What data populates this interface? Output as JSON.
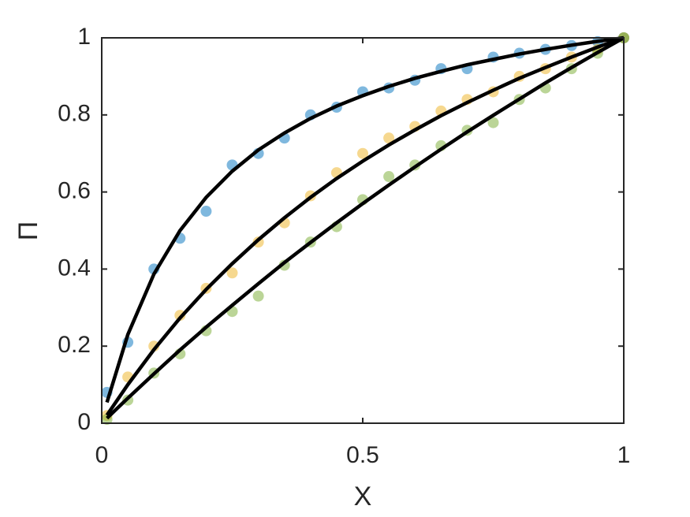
{
  "chart_data": {
    "type": "scatter",
    "xlabel": "X",
    "ylabel": "Π",
    "x": [
      0.01,
      0.05,
      0.1,
      0.15,
      0.2,
      0.25,
      0.3,
      0.35,
      0.4,
      0.45,
      0.5,
      0.55,
      0.6,
      0.65,
      0.7,
      0.75,
      0.8,
      0.85,
      0.9,
      0.95,
      1
    ],
    "xlim": [
      0,
      1
    ],
    "ylim": [
      0,
      1
    ],
    "xticks": [
      0,
      0.5,
      1
    ],
    "yticks": [
      0,
      0.2,
      0.4,
      0.6,
      0.8,
      1
    ],
    "series": [
      {
        "mode": "markers",
        "color": "#0072bd",
        "values": [
          0.08,
          0.21,
          0.4,
          0.48,
          0.55,
          0.67,
          0.7,
          0.74,
          0.8,
          0.82,
          0.86,
          0.87,
          0.89,
          0.92,
          0.92,
          0.95,
          0.96,
          0.97,
          0.98,
          0.99,
          1
        ]
      },
      {
        "mode": "markers",
        "color": "#edb120",
        "values": [
          0.02,
          0.12,
          0.2,
          0.28,
          0.35,
          0.39,
          0.47,
          0.52,
          0.59,
          0.65,
          0.7,
          0.74,
          0.77,
          0.81,
          0.84,
          0.86,
          0.9,
          0.92,
          0.95,
          0.97,
          1
        ]
      },
      {
        "mode": "markers",
        "color": "#77ac30",
        "values": [
          0.01,
          0.06,
          0.13,
          0.18,
          0.24,
          0.29,
          0.33,
          0.41,
          0.47,
          0.51,
          0.58,
          0.64,
          0.67,
          0.72,
          0.76,
          0.78,
          0.84,
          0.87,
          0.92,
          0.96,
          1
        ]
      },
      {
        "mode": "line",
        "color": "#000000",
        "values": [
          0.054,
          0.23,
          0.387,
          0.5,
          0.586,
          0.654,
          0.709,
          0.753,
          0.791,
          0.823,
          0.85,
          0.874,
          0.895,
          0.913,
          0.93,
          0.944,
          0.958,
          0.97,
          0.981,
          0.991,
          1
        ]
      },
      {
        "mode": "line",
        "color": "#000000",
        "values": [
          0.021,
          0.1,
          0.191,
          0.273,
          0.347,
          0.414,
          0.476,
          0.533,
          0.586,
          0.635,
          0.68,
          0.722,
          0.761,
          0.798,
          0.832,
          0.864,
          0.895,
          0.923,
          0.95,
          0.976,
          1
        ]
      },
      {
        "mode": "line",
        "color": "#000000",
        "values": [
          0.013,
          0.065,
          0.128,
          0.19,
          0.249,
          0.306,
          0.362,
          0.417,
          0.469,
          0.52,
          0.57,
          0.618,
          0.665,
          0.711,
          0.756,
          0.799,
          0.841,
          0.883,
          0.923,
          0.962,
          1
        ]
      }
    ]
  }
}
